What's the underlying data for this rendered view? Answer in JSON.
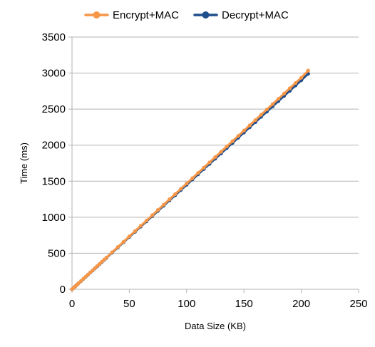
{
  "chart_data": {
    "type": "line",
    "xlabel": "Data Size (KB)",
    "ylabel": "Time (ms)",
    "xlim": [
      0,
      250
    ],
    "ylim": [
      0,
      3500
    ],
    "xticks": [
      "0",
      "50",
      "100",
      "150",
      "200",
      "250"
    ],
    "yticks": [
      "0",
      "500",
      "1000",
      "1500",
      "2000",
      "2500",
      "3000",
      "3500"
    ],
    "grid": "horizontal",
    "legend_position": "top",
    "series": [
      {
        "name": "Encrypt+MAC",
        "color": "#f79646",
        "x": [
          0,
          1,
          2,
          3,
          4,
          5,
          6,
          8,
          10,
          12,
          14,
          16,
          18,
          20,
          22,
          24,
          26,
          28,
          30,
          35,
          40,
          45,
          50,
          55,
          60,
          65,
          70,
          75,
          80,
          85,
          90,
          95,
          100,
          105,
          110,
          115,
          120,
          125,
          130,
          135,
          140,
          145,
          150,
          155,
          160,
          165,
          170,
          175,
          180,
          185,
          190,
          195,
          200,
          206
        ],
        "y": [
          0,
          15,
          29,
          44,
          59,
          73,
          88,
          117,
          147,
          176,
          206,
          235,
          264,
          294,
          323,
          352,
          382,
          411,
          440,
          514,
          587,
          660,
          734,
          807,
          881,
          954,
          1027,
          1101,
          1174,
          1248,
          1321,
          1395,
          1468,
          1541,
          1615,
          1688,
          1762,
          1835,
          1908,
          1982,
          2055,
          2129,
          2202,
          2275,
          2349,
          2422,
          2496,
          2569,
          2643,
          2716,
          2789,
          2863,
          2936,
          3035
        ]
      },
      {
        "name": "Decrypt+MAC",
        "color": "#1f4e8c",
        "x": [
          0,
          1,
          2,
          3,
          4,
          5,
          6,
          8,
          10,
          12,
          14,
          16,
          18,
          20,
          22,
          24,
          26,
          28,
          30,
          35,
          40,
          45,
          50,
          55,
          60,
          65,
          70,
          75,
          80,
          85,
          90,
          95,
          100,
          105,
          110,
          115,
          120,
          125,
          130,
          135,
          140,
          145,
          150,
          155,
          160,
          165,
          170,
          175,
          180,
          185,
          190,
          195,
          200,
          206
        ],
        "y": [
          0,
          14,
          29,
          43,
          58,
          72,
          87,
          116,
          145,
          174,
          203,
          232,
          261,
          290,
          319,
          348,
          377,
          406,
          435,
          508,
          580,
          653,
          725,
          798,
          870,
          943,
          1015,
          1088,
          1160,
          1233,
          1305,
          1378,
          1450,
          1523,
          1595,
          1668,
          1740,
          1813,
          1885,
          1958,
          2030,
          2103,
          2175,
          2248,
          2320,
          2393,
          2465,
          2538,
          2610,
          2683,
          2755,
          2828,
          2900,
          2990
        ]
      }
    ]
  }
}
